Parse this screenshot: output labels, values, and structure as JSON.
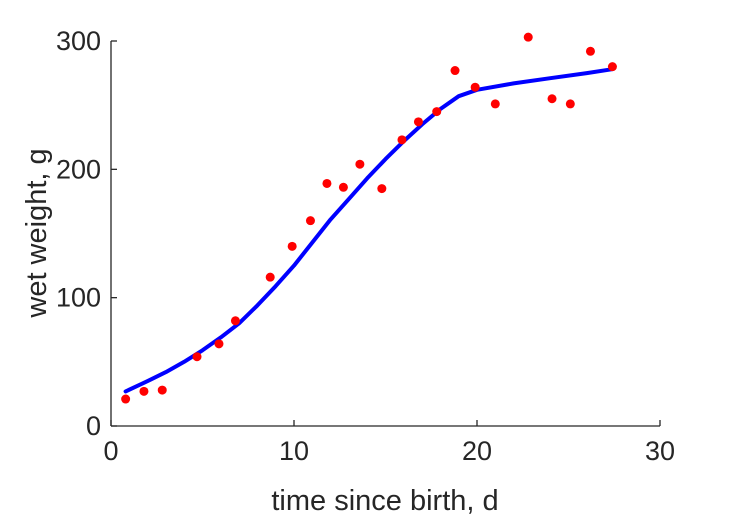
{
  "chart_data": {
    "type": "scatter",
    "title": "",
    "xlabel": "time since birth, d",
    "ylabel": "wet weight, g",
    "xlim": [
      0,
      30
    ],
    "ylim": [
      0,
      300
    ],
    "xticks": [
      0,
      10,
      20,
      30
    ],
    "yticks": [
      0,
      100,
      200,
      300
    ],
    "grid": false,
    "legend": "none",
    "colors": {
      "points": "#ff0000",
      "fit_line": "#0000ff",
      "axis": "#262626"
    },
    "series": [
      {
        "kind": "scatter",
        "x": [
          0.8,
          1.8,
          2.8,
          4.7,
          5.9,
          6.8,
          8.7,
          9.9,
          10.9,
          11.8,
          12.7,
          13.6,
          14.8,
          15.9,
          16.8,
          17.8,
          18.8,
          19.9,
          21.0,
          22.8,
          24.1,
          25.1,
          26.2,
          27.4
        ],
        "y": [
          21,
          27,
          28,
          54,
          64,
          82,
          116,
          140,
          160,
          189,
          186,
          204,
          185,
          223,
          237,
          245,
          277,
          264,
          251,
          303,
          255,
          251,
          292,
          280
        ]
      },
      {
        "kind": "line",
        "x": [
          0.8,
          2,
          3,
          4,
          5,
          6,
          7,
          8,
          9,
          10,
          11,
          12,
          13,
          14,
          15,
          16,
          17,
          18,
          19,
          20,
          22,
          24,
          26,
          27.4
        ],
        "y": [
          27,
          35,
          42,
          50,
          59,
          69,
          80,
          94,
          109,
          125,
          143,
          161,
          177,
          193,
          208,
          222,
          235,
          247,
          257,
          262,
          267,
          271,
          275,
          278
        ]
      }
    ]
  }
}
